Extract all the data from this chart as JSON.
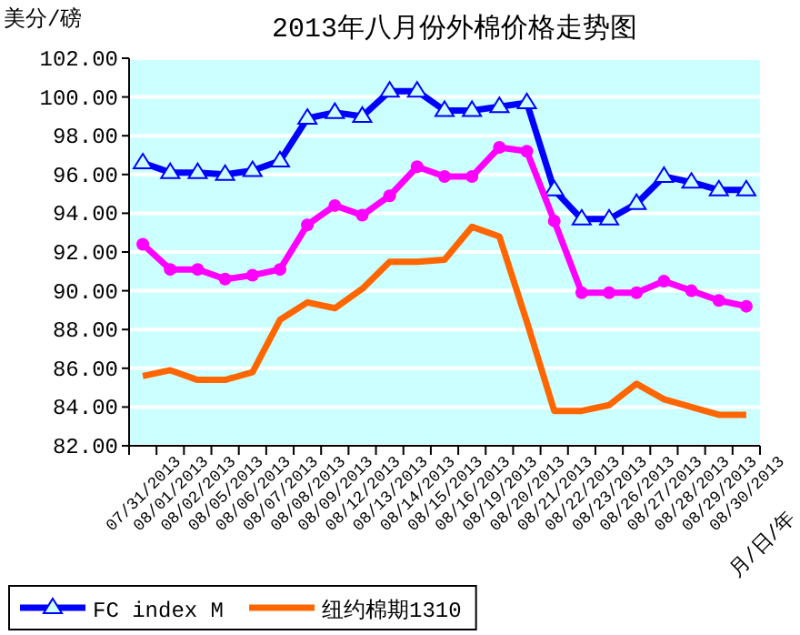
{
  "chart_data": {
    "type": "line",
    "title": "2013年八月份外棉价格走势图",
    "ylabel": "美分/磅",
    "xlabel": "月/日/年",
    "categories": [
      "07/31/2013",
      "08/01/2013",
      "08/02/2013",
      "08/05/2013",
      "08/06/2013",
      "08/07/2013",
      "08/08/2013",
      "08/09/2013",
      "08/12/2013",
      "08/13/2013",
      "08/14/2013",
      "08/15/2013",
      "08/16/2013",
      "08/19/2013",
      "08/20/2013",
      "08/21/2013",
      "08/22/2013",
      "08/23/2013",
      "08/26/2013",
      "08/27/2013",
      "08/28/2013",
      "08/29/2013",
      "08/30/2013"
    ],
    "ylim": [
      82,
      102
    ],
    "yticks": [
      {
        "value": 82,
        "label": "82.00"
      },
      {
        "value": 84,
        "label": "84.00"
      },
      {
        "value": 86,
        "label": "86.00"
      },
      {
        "value": 88,
        "label": "88.00"
      },
      {
        "value": 90,
        "label": "90.00"
      },
      {
        "value": 92,
        "label": "92.00"
      },
      {
        "value": 94,
        "label": "94.00"
      },
      {
        "value": 96,
        "label": "96.00"
      },
      {
        "value": 98,
        "label": "98.00"
      },
      {
        "value": 100,
        "label": "100.00"
      },
      {
        "value": 102,
        "label": "102.00"
      }
    ],
    "grid": "y",
    "legend": "bottom",
    "series": [
      {
        "name": "FC index M",
        "color": "#0000ff",
        "marker": "triangle",
        "values": [
          96.6,
          96.1,
          96.1,
          96.0,
          96.2,
          96.7,
          98.9,
          99.2,
          99.0,
          100.3,
          100.3,
          99.3,
          99.3,
          99.5,
          99.7,
          95.2,
          93.7,
          93.7,
          94.5,
          95.9,
          95.6,
          95.2,
          95.2
        ]
      },
      {
        "color": "#ff00ff",
        "marker": "circle",
        "values": [
          92.4,
          91.1,
          91.1,
          90.6,
          90.8,
          91.1,
          93.4,
          94.4,
          93.9,
          94.9,
          96.4,
          95.9,
          95.9,
          97.4,
          97.2,
          93.6,
          89.9,
          89.9,
          89.9,
          90.5,
          90.0,
          89.5,
          89.2
        ]
      },
      {
        "name": "纽约棉期1310",
        "color": "#ff6600",
        "marker": "none",
        "values": [
          85.6,
          85.9,
          85.4,
          85.4,
          85.8,
          88.5,
          89.4,
          89.1,
          90.1,
          91.5,
          91.5,
          91.6,
          93.3,
          92.8,
          88.4,
          83.8,
          83.8,
          84.1,
          85.2,
          84.4,
          84.0,
          83.6,
          83.6
        ]
      }
    ]
  }
}
